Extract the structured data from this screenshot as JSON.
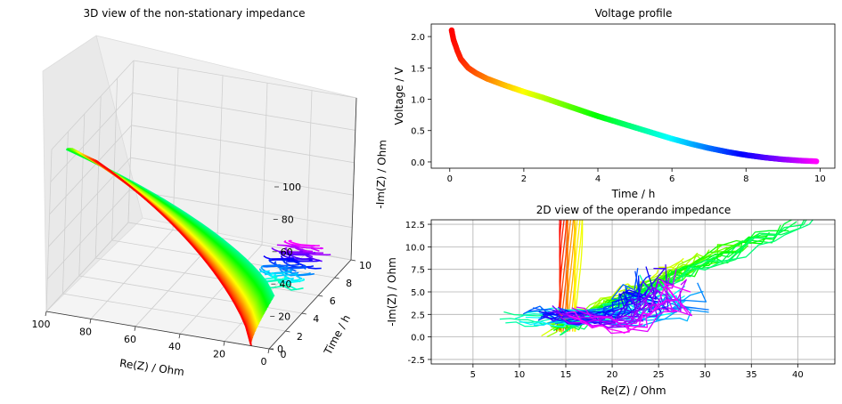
{
  "chart_data": [
    {
      "type": "surface3d",
      "title": "3D view of the non-stationary impedance",
      "xlabel": "Re(Z) / Ohm",
      "ylabel": "Time / h",
      "zlabel": "-Im(Z) / Ohm",
      "xlim": [
        0,
        100
      ],
      "ylim": [
        0,
        10
      ],
      "zlim": [
        0,
        100
      ],
      "xticks": [
        "100",
        "80",
        "60",
        "40",
        "20",
        "0"
      ],
      "yticks": [
        "0",
        "2",
        "4",
        "6",
        "8",
        "10"
      ],
      "zticks": [
        "0",
        "20",
        "40",
        "60",
        "80",
        "100"
      ],
      "grid": true,
      "color_scale": "hsv by time (red at 0 h to magenta at 10 h)",
      "curves_approx": 80
    },
    {
      "type": "scatter",
      "title": "Voltage profile",
      "xlabel": "Time / h",
      "ylabel": "Voltage / V",
      "xlim": [
        -0.5,
        10.4
      ],
      "ylim": [
        -0.1,
        2.2
      ],
      "xticks": [
        "0",
        "2",
        "4",
        "6",
        "8",
        "10"
      ],
      "yticks": [
        "0.0",
        "0.5",
        "1.0",
        "1.5",
        "2.0"
      ],
      "grid": false,
      "color_scale": "hsv by time",
      "x": [
        0.05,
        0.1,
        0.2,
        0.3,
        0.5,
        0.7,
        1.0,
        1.5,
        2.0,
        2.5,
        3.0,
        3.5,
        4.0,
        4.5,
        5.0,
        5.5,
        6.0,
        6.5,
        7.0,
        7.5,
        8.0,
        8.5,
        9.0,
        9.5,
        9.9
      ],
      "y": [
        2.1,
        1.95,
        1.78,
        1.64,
        1.5,
        1.42,
        1.33,
        1.22,
        1.12,
        1.03,
        0.93,
        0.83,
        0.73,
        0.64,
        0.55,
        0.46,
        0.37,
        0.29,
        0.22,
        0.16,
        0.11,
        0.07,
        0.04,
        0.02,
        0.01
      ]
    },
    {
      "type": "line",
      "title": "2D view of the operando impedance",
      "xlabel": "Re(Z) / Ohm",
      "ylabel": "-Im(Z) / Ohm",
      "xlim": [
        0.5,
        44
      ],
      "ylim": [
        -3,
        13
      ],
      "xticks": [
        "5",
        "10",
        "15",
        "20",
        "25",
        "30",
        "35",
        "40"
      ],
      "yticks": [
        "-2.5",
        "0.0",
        "2.5",
        "5.0",
        "7.5",
        "10.0",
        "12.5"
      ],
      "grid": true,
      "color_scale": "hsv by time",
      "curves_approx": 80
    }
  ]
}
